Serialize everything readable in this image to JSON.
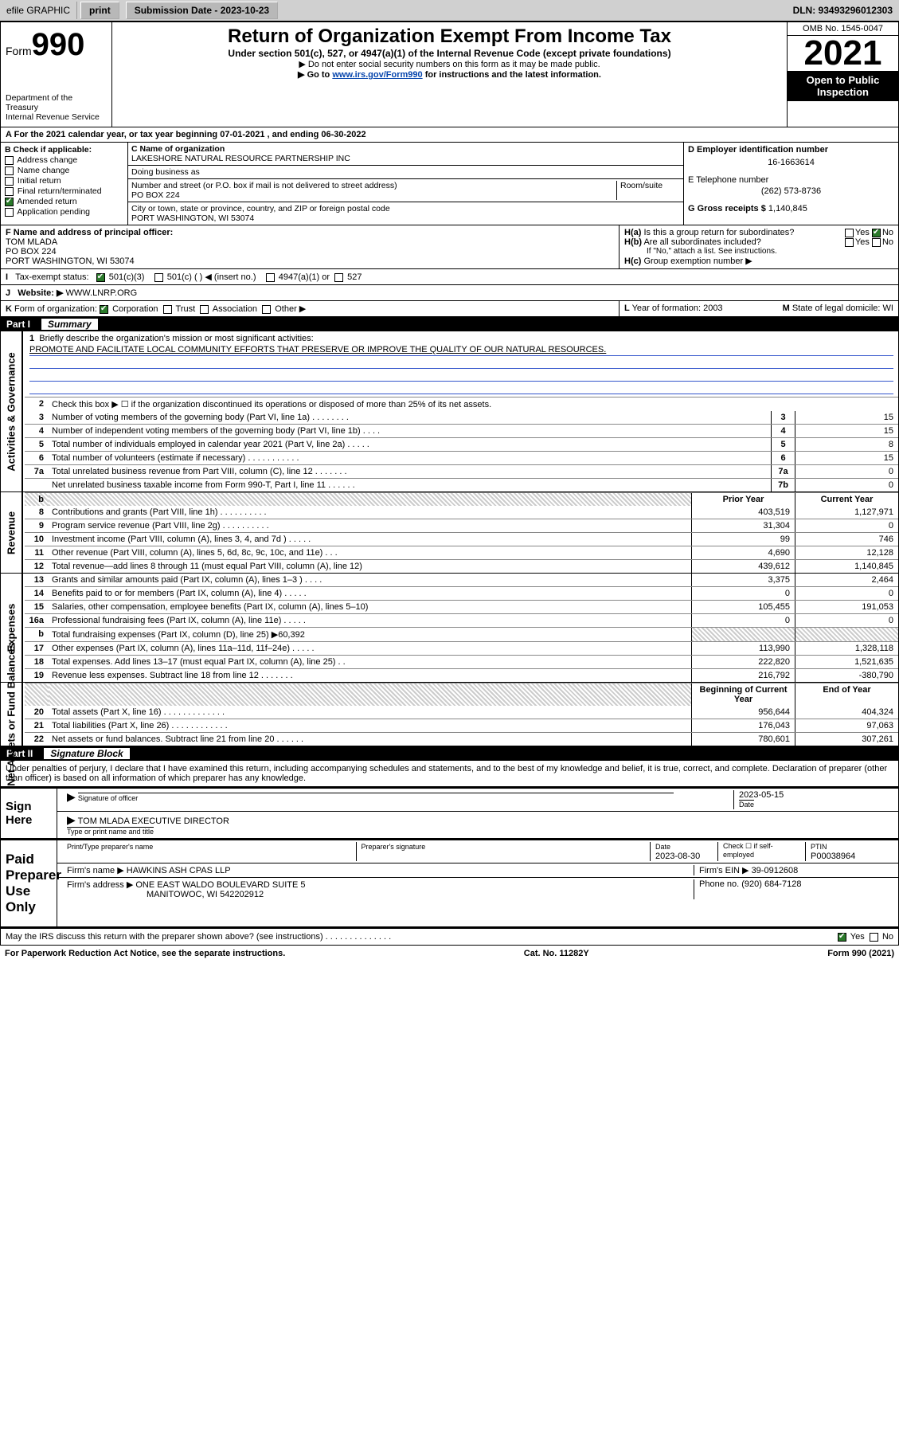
{
  "topbar": {
    "efile": "efile GRAPHIC",
    "print": "print",
    "subdate_label": "Submission Date - 2023-10-23",
    "dln": "DLN: 93493296012303"
  },
  "header": {
    "form_prefix": "Form",
    "form_num": "990",
    "title": "Return of Organization Exempt From Income Tax",
    "subtitle": "Under section 501(c), 527, or 4947(a)(1) of the Internal Revenue Code (except private foundations)",
    "note1": "▶ Do not enter social security numbers on this form as it may be made public.",
    "note2_pre": "▶ Go to ",
    "note2_link": "www.irs.gov/Form990",
    "note2_post": " for instructions and the latest information.",
    "omb": "OMB No. 1545-0047",
    "year": "2021",
    "open": "Open to Public Inspection",
    "dept": "Department of the Treasury",
    "irs": "Internal Revenue Service"
  },
  "A": {
    "label": "For the 2021 calendar year, or tax year beginning ",
    "begin": "07-01-2021",
    "mid": " , and ending ",
    "end": "06-30-2022"
  },
  "B": {
    "label": "Check if applicable:",
    "opts": [
      "Address change",
      "Name change",
      "Initial return",
      "Final return/terminated",
      "Amended return",
      "Application pending"
    ],
    "checked_idx": 4
  },
  "C": {
    "name_label": "C Name of organization",
    "name": "LAKESHORE NATURAL RESOURCE PARTNERSHIP INC",
    "dba_label": "Doing business as",
    "street_label": "Number and street (or P.O. box if mail is not delivered to street address)",
    "room_label": "Room/suite",
    "street": "PO BOX 224",
    "city_label": "City or town, state or province, country, and ZIP or foreign postal code",
    "city": "PORT WASHINGTON, WI  53074"
  },
  "D": {
    "label": "D Employer identification number",
    "val": "16-1663614"
  },
  "E": {
    "label": "E Telephone number",
    "val": "(262) 573-8736"
  },
  "G": {
    "label": "G Gross receipts $",
    "val": "1,140,845"
  },
  "F": {
    "label": "F Name and address of principal officer:",
    "name": "TOM MLADA",
    "addr1": "PO BOX 224",
    "addr2": "PORT WASHINGTON, WI  53074"
  },
  "H": {
    "a": "Is this a group return for subordinates?",
    "b": "Are all subordinates included?",
    "bnote": "If \"No,\" attach a list. See instructions.",
    "c": "Group exemption number ▶",
    "yes": "Yes",
    "no": "No"
  },
  "I": {
    "label": "Tax-exempt status:",
    "o1": "501(c)(3)",
    "o2": "501(c) (  ) ◀ (insert no.)",
    "o3": "4947(a)(1) or",
    "o4": "527"
  },
  "J": {
    "label": "Website: ▶",
    "val": "WWW.LNRP.ORG"
  },
  "K": {
    "label": "Form of organization:",
    "o1": "Corporation",
    "o2": "Trust",
    "o3": "Association",
    "o4": "Other ▶"
  },
  "L": {
    "label": "Year of formation:",
    "val": "2003"
  },
  "M": {
    "label": "State of legal domicile:",
    "val": "WI"
  },
  "part1": {
    "label": "Part I",
    "title": "Summary"
  },
  "summary": {
    "l1": "Briefly describe the organization's mission or most significant activities:",
    "mission": "PROMOTE AND FACILITATE LOCAL COMMUNITY EFFORTS THAT PRESERVE OR IMPROVE THE QUALITY OF OUR NATURAL RESOURCES.",
    "l2": "Check this box ▶ ☐  if the organization discontinued its operations or disposed of more than 25% of its net assets.",
    "rows_gov": [
      {
        "n": "3",
        "d": "Number of voting members of the governing body (Part VI, line 1a)   .   .   .   .   .   .   .   .",
        "b": "3",
        "v": "15"
      },
      {
        "n": "4",
        "d": "Number of independent voting members of the governing body (Part VI, line 1b)   .   .   .   .",
        "b": "4",
        "v": "15"
      },
      {
        "n": "5",
        "d": "Total number of individuals employed in calendar year 2021 (Part V, line 2a)   .   .   .   .   .",
        "b": "5",
        "v": "8"
      },
      {
        "n": "6",
        "d": "Total number of volunteers (estimate if necessary)   .   .   .   .   .   .   .   .   .   .   .",
        "b": "6",
        "v": "15"
      },
      {
        "n": "7a",
        "d": "Total unrelated business revenue from Part VIII, column (C), line 12   .   .   .   .   .   .   .",
        "b": "7a",
        "v": "0"
      },
      {
        "n": "",
        "d": "Net unrelated business taxable income from Form 990-T, Part I, line 11   .   .   .   .   .   .",
        "b": "7b",
        "v": "0"
      }
    ],
    "col_prior": "Prior Year",
    "col_curr": "Current Year",
    "rev_rows": [
      {
        "n": "8",
        "d": "Contributions and grants (Part VIII, line 1h)   .   .   .   .   .   .   .   .   .   .",
        "p": "403,519",
        "c": "1,127,971"
      },
      {
        "n": "9",
        "d": "Program service revenue (Part VIII, line 2g)   .   .   .   .   .   .   .   .   .   .",
        "p": "31,304",
        "c": "0"
      },
      {
        "n": "10",
        "d": "Investment income (Part VIII, column (A), lines 3, 4, and 7d )   .   .   .   .   .",
        "p": "99",
        "c": "746"
      },
      {
        "n": "11",
        "d": "Other revenue (Part VIII, column (A), lines 5, 6d, 8c, 9c, 10c, and 11e)   .   .   .",
        "p": "4,690",
        "c": "12,128"
      },
      {
        "n": "12",
        "d": "Total revenue—add lines 8 through 11 (must equal Part VIII, column (A), line 12)",
        "p": "439,612",
        "c": "1,140,845"
      }
    ],
    "exp_rows": [
      {
        "n": "13",
        "d": "Grants and similar amounts paid (Part IX, column (A), lines 1–3 )   .   .   .   .",
        "p": "3,375",
        "c": "2,464"
      },
      {
        "n": "14",
        "d": "Benefits paid to or for members (Part IX, column (A), line 4)   .   .   .   .   .",
        "p": "0",
        "c": "0"
      },
      {
        "n": "15",
        "d": "Salaries, other compensation, employee benefits (Part IX, column (A), lines 5–10)",
        "p": "105,455",
        "c": "191,053"
      },
      {
        "n": "16a",
        "d": "Professional fundraising fees (Part IX, column (A), line 11e)   .   .   .   .   .",
        "p": "0",
        "c": "0"
      },
      {
        "n": "b",
        "d": "Total fundraising expenses (Part IX, column (D), line 25) ▶60,392",
        "p": "",
        "c": "",
        "hatch": true
      },
      {
        "n": "17",
        "d": "Other expenses (Part IX, column (A), lines 11a–11d, 11f–24e)   .   .   .   .   .",
        "p": "113,990",
        "c": "1,328,118"
      },
      {
        "n": "18",
        "d": "Total expenses. Add lines 13–17 (must equal Part IX, column (A), line 25)   .   .",
        "p": "222,820",
        "c": "1,521,635"
      },
      {
        "n": "19",
        "d": "Revenue less expenses. Subtract line 18 from line 12   .   .   .   .   .   .   .",
        "p": "216,792",
        "c": "-380,790"
      }
    ],
    "na_head_l": "Beginning of Current Year",
    "na_head_r": "End of Year",
    "na_rows": [
      {
        "n": "20",
        "d": "Total assets (Part X, line 16)   .   .   .   .   .   .   .   .   .   .   .   .   .",
        "p": "956,644",
        "c": "404,324"
      },
      {
        "n": "21",
        "d": "Total liabilities (Part X, line 26)   .   .   .   .   .   .   .   .   .   .   .   .",
        "p": "176,043",
        "c": "97,063"
      },
      {
        "n": "22",
        "d": "Net assets or fund balances. Subtract line 21 from line 20   .   .   .   .   .   .",
        "p": "780,601",
        "c": "307,261"
      }
    ]
  },
  "sidelabels": {
    "gov": "Activities & Governance",
    "rev": "Revenue",
    "exp": "Expenses",
    "na": "Net Assets or Fund Balances"
  },
  "part2": {
    "label": "Part II",
    "title": "Signature Block"
  },
  "sig": {
    "penalty": "Under penalties of perjury, I declare that I have examined this return, including accompanying schedules and statements, and to the best of my knowledge and belief, it is true, correct, and complete. Declaration of preparer (other than officer) is based on all information of which preparer has any knowledge.",
    "sign_here": "Sign Here",
    "sig_officer": "Signature of officer",
    "date": "Date",
    "sig_date": "2023-05-15",
    "name_title_lbl": "Type or print name and title",
    "name_title": "TOM MLADA EXECUTIVE DIRECTOR",
    "paid": "Paid Preparer Use Only",
    "pp_name_lbl": "Print/Type preparer's name",
    "pp_sig_lbl": "Preparer's signature",
    "pp_date_lbl": "Date",
    "pp_date": "2023-08-30",
    "pp_self": "Check ☐ if self-employed",
    "ptin_lbl": "PTIN",
    "ptin": "P00038964",
    "firm_name_lbl": "Firm's name   ▶",
    "firm_name": "HAWKINS ASH CPAS LLP",
    "firm_ein_lbl": "Firm's EIN ▶",
    "firm_ein": "39-0912608",
    "firm_addr_lbl": "Firm's address ▶",
    "firm_addr1": "ONE EAST WALDO BOULEVARD SUITE 5",
    "firm_addr2": "MANITOWOC, WI  542202912",
    "phone_lbl": "Phone no.",
    "phone": "(920) 684-7128",
    "may_irs": "May the IRS discuss this return with the preparer shown above? (see instructions)   .   .   .   .   .   .   .   .   .   .   .   .   .   .",
    "yes": "Yes",
    "no": "No"
  },
  "footer": {
    "l": "For Paperwork Reduction Act Notice, see the separate instructions.",
    "c": "Cat. No. 11282Y",
    "r": "Form 990 (2021)"
  }
}
